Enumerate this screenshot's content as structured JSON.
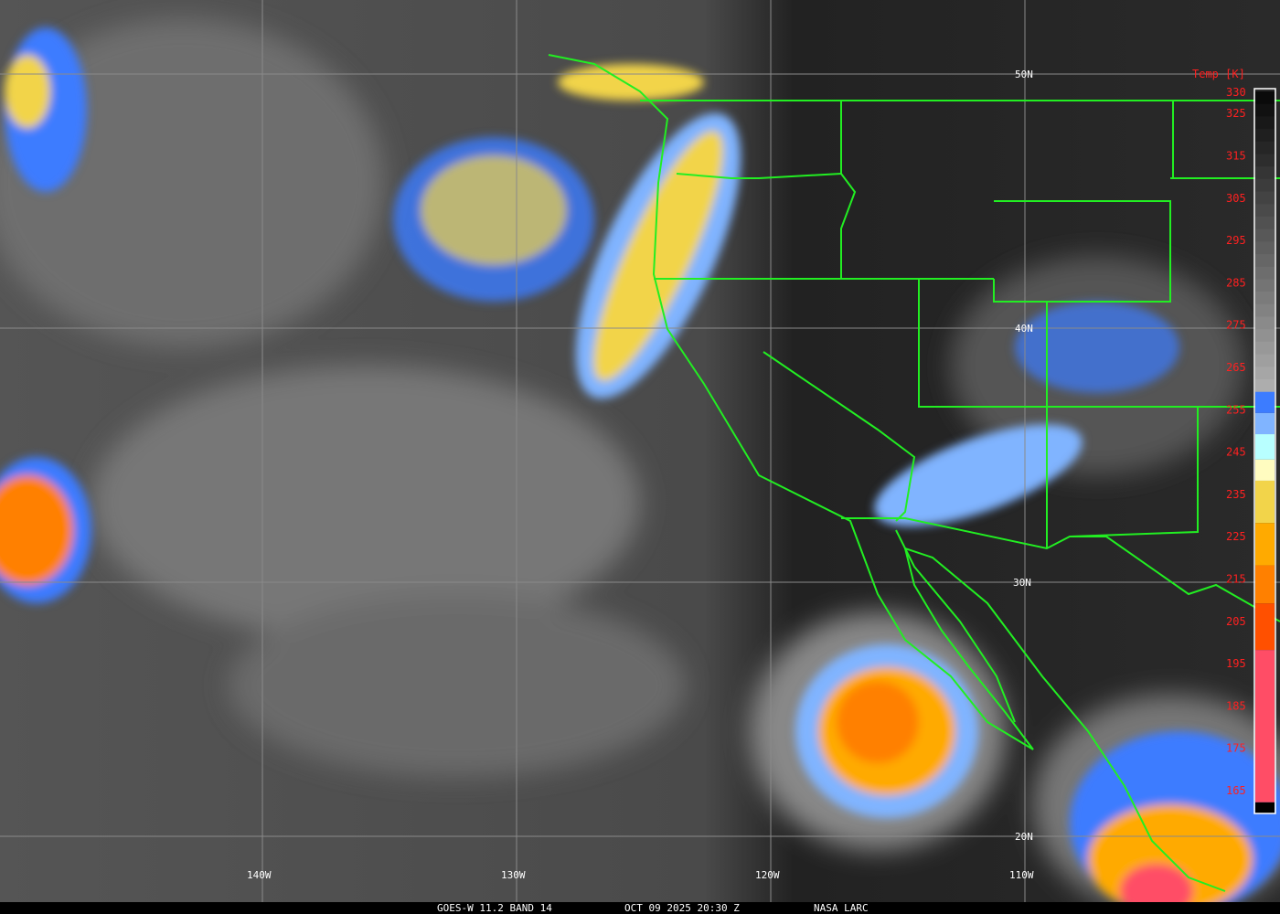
{
  "caption": {
    "satellite": "GOES-W 11.2 BAND 14",
    "datetime": "OCT 09 2025 20:30 Z",
    "source": "NASA LARC"
  },
  "grid": {
    "latitudes": [
      "50N",
      "40N",
      "30N",
      "20N"
    ],
    "longitudes": [
      "140W",
      "130W",
      "120W",
      "110W"
    ]
  },
  "colorbar": {
    "title": "Temp [K]",
    "range": [
      165,
      330
    ],
    "labels": [
      "330",
      "325",
      "315",
      "305",
      "295",
      "285",
      "275",
      "265",
      "255",
      "245",
      "235",
      "225",
      "215",
      "205",
      "195",
      "185",
      "175",
      "165"
    ],
    "stops": [
      {
        "from": 330,
        "to": 259,
        "color": "gradient-black-to-lightgrey"
      },
      {
        "from": 259,
        "to": 254,
        "color": "#3c7cff"
      },
      {
        "from": 254,
        "to": 249,
        "color": "#80b4ff"
      },
      {
        "from": 249,
        "to": 243,
        "color": "#b8ffff"
      },
      {
        "from": 243,
        "to": 238,
        "color": "#fffcc0"
      },
      {
        "from": 238,
        "to": 228,
        "color": "#f2d44a"
      },
      {
        "from": 228,
        "to": 218,
        "color": "#ffaa00"
      },
      {
        "from": 218,
        "to": 209,
        "color": "#ff8000"
      },
      {
        "from": 209,
        "to": 198,
        "color": "#ff5000"
      },
      {
        "from": 198,
        "to": 162,
        "color": "#ff4d66"
      },
      {
        "from": 162,
        "to": 158,
        "color": "#000000"
      }
    ]
  },
  "colors": {
    "boundaries": "#22ee22",
    "gridlines": "#8a8a8a",
    "labels_colorbar": "#ff2020"
  }
}
